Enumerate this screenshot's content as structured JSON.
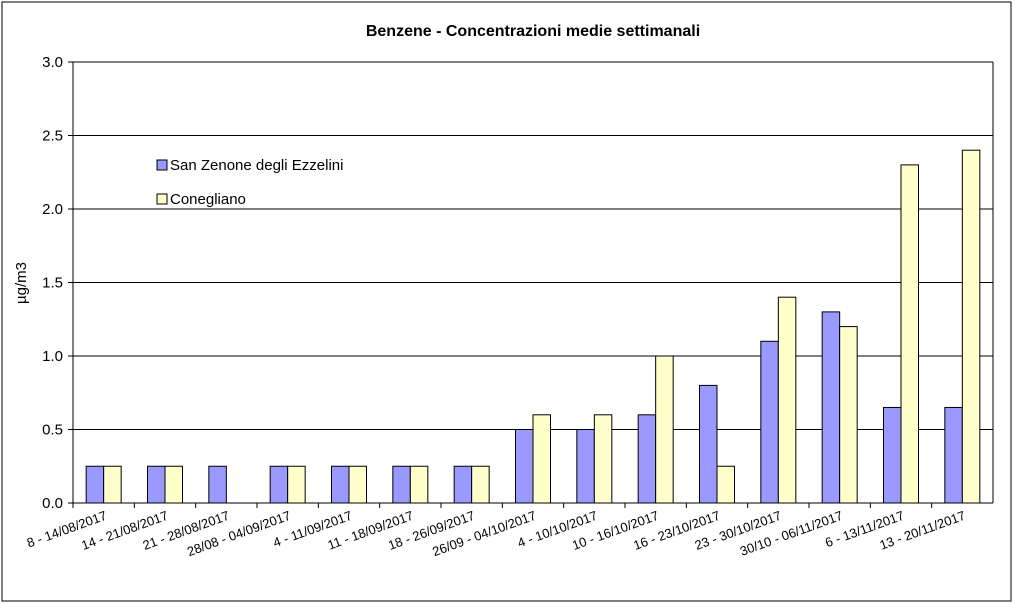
{
  "chart_data": {
    "type": "bar",
    "title": "Benzene - Concentrazioni medie settimanali",
    "y_label": "µg/m3",
    "categories": [
      "8 - 14/08/2017",
      "14 - 21/08/2017",
      "21 - 28/08/2017",
      "28/08 - 04/09/2017",
      "4 - 11/09/2017",
      "11 - 18/09/2017",
      "18 - 26/09/2017",
      "26/09 - 04/10/2017",
      "4 - 10/10/2017",
      "10 - 16/10/2017",
      "16 - 23/10/2017",
      "23 - 30/10/2017",
      "30/10 - 06/11/2017",
      "6 - 13/11/2017",
      "13 - 20/11/2017"
    ],
    "series": [
      {
        "name": "San Zenone degli Ezzelini",
        "color": "#9999ff",
        "values": [
          0.25,
          0.25,
          0.25,
          0.25,
          0.25,
          0.25,
          0.25,
          0.5,
          0.5,
          0.6,
          0.8,
          1.1,
          1.3,
          0.65,
          0.65
        ]
      },
      {
        "name": "Conegliano",
        "color": "#ffffcc",
        "values": [
          0.25,
          0.25,
          null,
          0.25,
          0.25,
          0.25,
          0.25,
          0.6,
          0.6,
          1.0,
          0.25,
          1.4,
          1.2,
          2.3,
          2.4
        ]
      }
    ],
    "ylim": [
      0,
      3
    ],
    "yticks": [
      {
        "value": 0,
        "label": "0.0"
      },
      0.5,
      {
        "value": 1,
        "label": "1.0"
      },
      1.5,
      {
        "value": 2,
        "label": "2.0"
      },
      2.5,
      {
        "value": 3,
        "label": "3.0"
      }
    ],
    "grid": true,
    "legend": "upper-left"
  }
}
